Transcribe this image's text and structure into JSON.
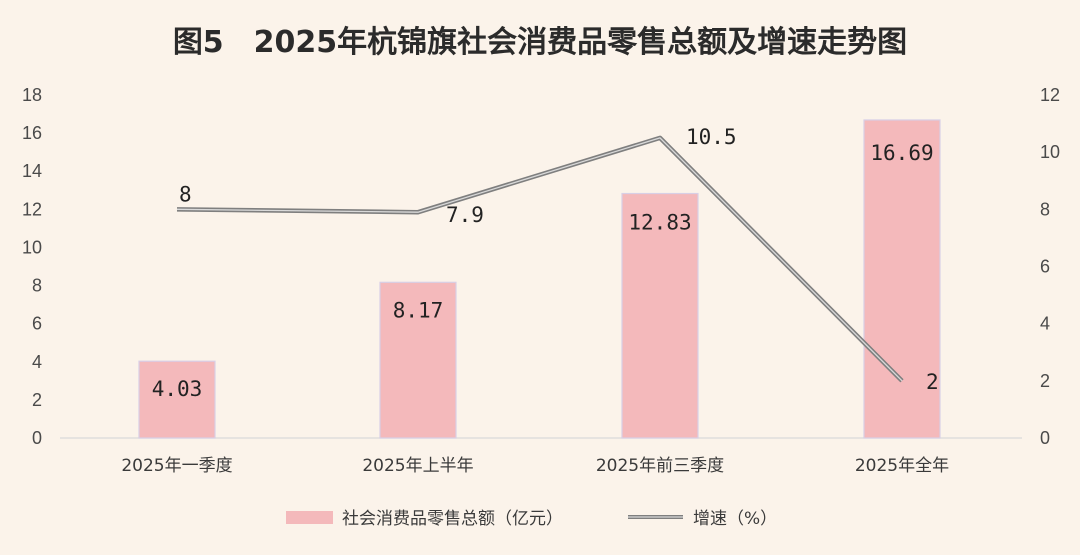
{
  "chart_data": {
    "title": "图5　2025年杭锦旗社会消费品零售总额及增速走势图",
    "categories": [
      "2025年一季度",
      "2025年上半年",
      "2025年前三季度",
      "2025年全年"
    ],
    "series": [
      {
        "name": "社会消费品零售总额（亿元）",
        "type": "bar",
        "axis": "left",
        "values": [
          4.03,
          8.17,
          12.83,
          16.69
        ],
        "color": "#f4b9bb"
      },
      {
        "name": "增速（%）",
        "type": "line",
        "axis": "right",
        "values": [
          8,
          7.9,
          10.5,
          2
        ],
        "color": "#7f7f7f"
      }
    ],
    "y_left": {
      "min": 0,
      "max": 18,
      "ticks": [
        0,
        2,
        4,
        6,
        8,
        10,
        12,
        14,
        16,
        18
      ]
    },
    "y_right": {
      "min": 0,
      "max": 12,
      "ticks": [
        0,
        2,
        4,
        6,
        8,
        10,
        12
      ]
    },
    "grid": false,
    "legend_position": "bottom",
    "background": "#fbf3ea"
  }
}
